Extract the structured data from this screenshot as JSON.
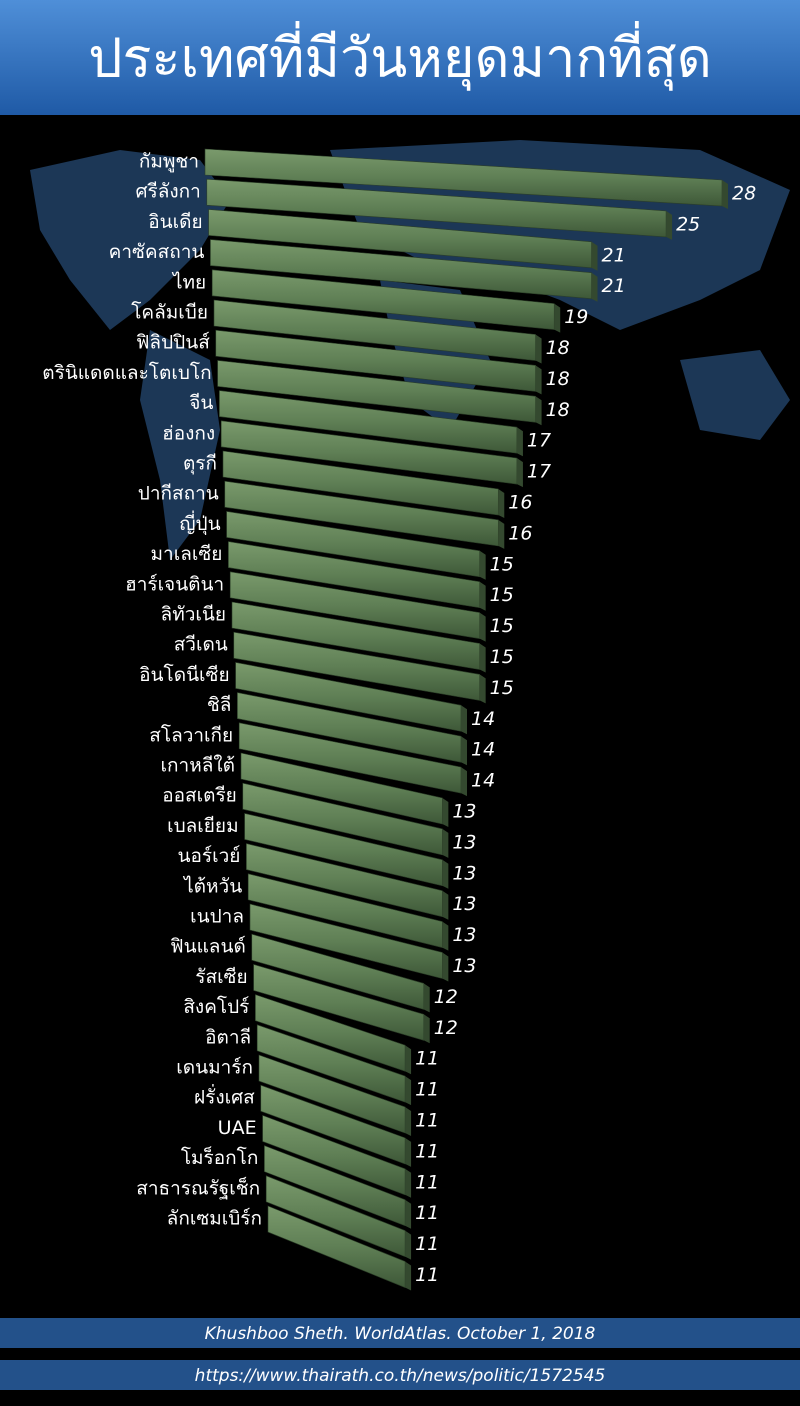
{
  "chart_data": {
    "type": "bar",
    "title": "ประเทศที่มีวันหยุดมากที่สุด",
    "categories": [
      "กัมพูชา",
      "ศรีลังกา",
      "อินเดีย",
      "คาซัคสถาน",
      "ไทย",
      "โคลัมเบีย",
      "ฟิลิปปินส์",
      "ตรินิแดดและโตเบโก",
      "จีน",
      "ฮ่องกง",
      "ตุรกี",
      "ปากีสถาน",
      "ญี่ปุ่น",
      "มาเลเซีย",
      "ฮาร์เจนตินา",
      "ลิทัวเนีย",
      "สวีเดน",
      "อินโดนีเซีย",
      "ชิลี",
      "สโลวาเกีย",
      "เกาหลีใต้",
      "ออสเตรีย",
      "เบลเยียม",
      "นอร์เวย์",
      "ไต้หวัน",
      "เนปาล",
      "ฟินแลนด์",
      "รัสเซีย",
      "สิงคโปร์",
      "อิตาลี",
      "เดนมาร์ก",
      "ฝรั่งเศส",
      "UAE",
      "โมร็อกโก",
      "สาธารณรัฐเช็ก",
      "ลักเซมเบิร์ก"
    ],
    "values": [
      28,
      25,
      21,
      21,
      19,
      18,
      18,
      18,
      17,
      17,
      16,
      16,
      15,
      15,
      15,
      15,
      15,
      14,
      14,
      14,
      13,
      13,
      13,
      13,
      13,
      13,
      12,
      12,
      11,
      11,
      11,
      11,
      11,
      11,
      11,
      11
    ],
    "color": "#5f7f55",
    "source": "Khushboo Sheth. WorldAtlas. October 1, 2018",
    "url": "https://www.thairath.co.th/news/politic/1572545"
  }
}
